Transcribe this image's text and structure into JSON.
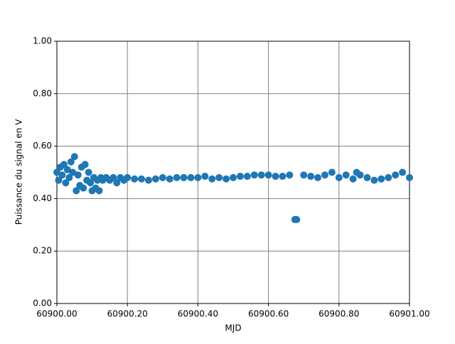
{
  "chart_data": {
    "type": "scatter",
    "xlabel": "MJD",
    "ylabel": "Puissance du signal en V",
    "color": "#1f77b4",
    "grid": true,
    "xlim": [
      60900,
      60901
    ],
    "xticks": [
      {
        "value": 60900,
        "label": "60900.00"
      },
      {
        "value": 60900.2,
        "label": "60900.20"
      },
      {
        "value": 60900.4,
        "label": "60900.40"
      },
      {
        "value": 60900.6,
        "label": "60900.60"
      },
      {
        "value": 60900.8,
        "label": "60900.80"
      },
      {
        "value": 60901,
        "label": "60901.00"
      }
    ],
    "ylim": [
      0,
      1
    ],
    "yticks": [
      {
        "value": 0,
        "label": "0.00"
      },
      {
        "value": 0.2,
        "label": "0.20"
      },
      {
        "value": 0.4,
        "label": "0.40"
      },
      {
        "value": 0.6,
        "label": "0.60"
      },
      {
        "value": 0.8,
        "label": "0.80"
      },
      {
        "value": 1,
        "label": "1.00"
      }
    ],
    "x": [
      60900.0,
      60900.005,
      60900.01,
      60900.015,
      60900.02,
      60900.025,
      60900.03,
      60900.035,
      60900.04,
      60900.045,
      60900.05,
      60900.055,
      60900.06,
      60900.065,
      60900.07,
      60900.075,
      60900.08,
      60900.085,
      60900.09,
      60900.095,
      60900.1,
      60900.105,
      60900.11,
      60900.115,
      60900.12,
      60900.125,
      60900.13,
      60900.14,
      60900.15,
      60900.16,
      60900.17,
      60900.18,
      60900.19,
      60900.2,
      60900.22,
      60900.24,
      60900.26,
      60900.28,
      60900.3,
      60900.32,
      60900.34,
      60900.36,
      60900.38,
      60900.4,
      60900.42,
      60900.44,
      60900.46,
      60900.48,
      60900.5,
      60900.52,
      60900.54,
      60900.56,
      60900.58,
      60900.6,
      60900.62,
      60900.64,
      60900.66,
      60900.675,
      60900.68,
      60900.7,
      60900.72,
      60900.74,
      60900.76,
      60900.78,
      60900.8,
      60900.82,
      60900.84,
      60900.85,
      60900.86,
      60900.88,
      60900.9,
      60900.92,
      60900.94,
      60900.96,
      60900.98,
      60901.0
    ],
    "y": [
      0.5,
      0.47,
      0.52,
      0.49,
      0.53,
      0.46,
      0.51,
      0.48,
      0.54,
      0.5,
      0.56,
      0.43,
      0.49,
      0.45,
      0.52,
      0.44,
      0.53,
      0.47,
      0.5,
      0.46,
      0.43,
      0.48,
      0.44,
      0.47,
      0.43,
      0.48,
      0.47,
      0.48,
      0.47,
      0.48,
      0.46,
      0.48,
      0.47,
      0.48,
      0.475,
      0.475,
      0.47,
      0.475,
      0.48,
      0.475,
      0.48,
      0.48,
      0.48,
      0.48,
      0.485,
      0.475,
      0.48,
      0.475,
      0.48,
      0.485,
      0.485,
      0.49,
      0.49,
      0.49,
      0.485,
      0.485,
      0.49,
      0.32,
      0.32,
      0.49,
      0.485,
      0.48,
      0.49,
      0.5,
      0.48,
      0.49,
      0.475,
      0.5,
      0.49,
      0.48,
      0.47,
      0.475,
      0.48,
      0.49,
      0.5,
      0.48
    ]
  }
}
